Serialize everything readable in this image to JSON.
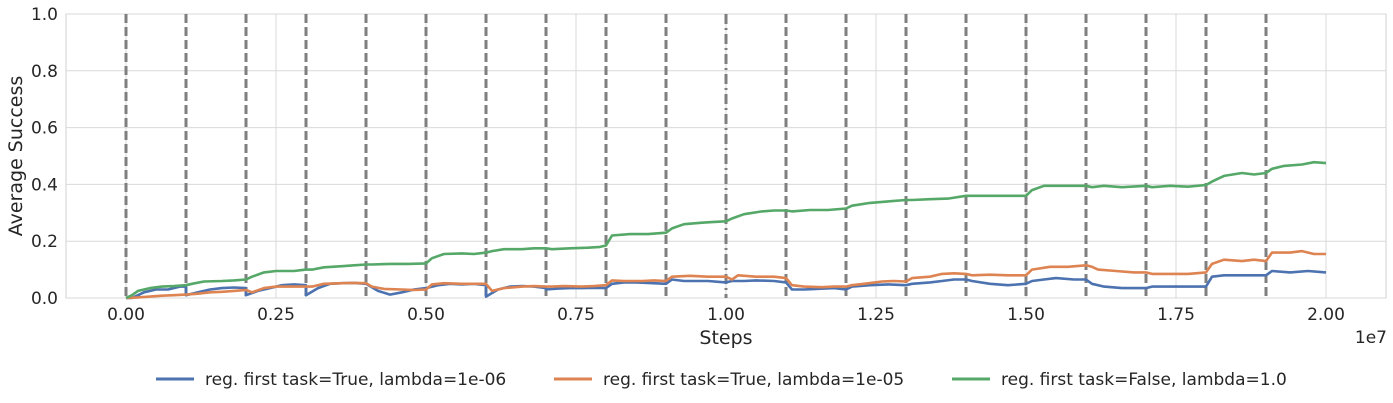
{
  "chart_data": {
    "type": "line",
    "xlabel": "Steps",
    "ylabel": "Average Success",
    "x_offset_label": "1e7",
    "xlim": [
      -0.05,
      2.05
    ],
    "ylim": [
      0.0,
      1.0
    ],
    "x_ticks": [
      0.0,
      0.25,
      0.5,
      0.75,
      1.0,
      1.25,
      1.5,
      1.75,
      2.0
    ],
    "x_tick_labels": [
      "0.00",
      "0.25",
      "0.50",
      "0.75",
      "1.00",
      "1.25",
      "1.50",
      "1.75",
      "2.00"
    ],
    "y_ticks": [
      0.0,
      0.2,
      0.4,
      0.6,
      0.8,
      1.0
    ],
    "y_tick_labels": [
      "0.0",
      "0.2",
      "0.4",
      "0.6",
      "0.8",
      "1.0"
    ],
    "grid": true,
    "legend_position": "bottom-center",
    "task_boundaries": [
      0.0,
      0.1,
      0.2,
      0.3,
      0.4,
      0.5,
      0.6,
      0.7,
      0.8,
      0.9,
      1.0,
      1.1,
      1.2,
      1.3,
      1.4,
      1.5,
      1.6,
      1.7,
      1.8,
      1.9
    ],
    "boundary_color": "#7f7f7f",
    "series": [
      {
        "name": "reg. first task=True, lambda=1e-06",
        "color": "#4c72b0",
        "points": [
          [
            0.0,
            0.0
          ],
          [
            0.01,
            0.0
          ],
          [
            0.02,
            0.01
          ],
          [
            0.03,
            0.02
          ],
          [
            0.05,
            0.03
          ],
          [
            0.07,
            0.03
          ],
          [
            0.09,
            0.04
          ],
          [
            0.1,
            0.04
          ],
          [
            0.1,
            0.01
          ],
          [
            0.12,
            0.02
          ],
          [
            0.14,
            0.03
          ],
          [
            0.16,
            0.035
          ],
          [
            0.18,
            0.037
          ],
          [
            0.2,
            0.035
          ],
          [
            0.2,
            0.01
          ],
          [
            0.22,
            0.025
          ],
          [
            0.24,
            0.035
          ],
          [
            0.26,
            0.045
          ],
          [
            0.28,
            0.048
          ],
          [
            0.3,
            0.045
          ],
          [
            0.3,
            0.01
          ],
          [
            0.32,
            0.035
          ],
          [
            0.34,
            0.05
          ],
          [
            0.36,
            0.052
          ],
          [
            0.38,
            0.053
          ],
          [
            0.4,
            0.05
          ],
          [
            0.42,
            0.025
          ],
          [
            0.44,
            0.012
          ],
          [
            0.46,
            0.02
          ],
          [
            0.48,
            0.03
          ],
          [
            0.5,
            0.035
          ],
          [
            0.5,
            0.035
          ],
          [
            0.52,
            0.045
          ],
          [
            0.54,
            0.05
          ],
          [
            0.56,
            0.048
          ],
          [
            0.58,
            0.05
          ],
          [
            0.6,
            0.045
          ],
          [
            0.6,
            0.005
          ],
          [
            0.62,
            0.03
          ],
          [
            0.64,
            0.04
          ],
          [
            0.66,
            0.042
          ],
          [
            0.68,
            0.04
          ],
          [
            0.7,
            0.035
          ],
          [
            0.7,
            0.03
          ],
          [
            0.72,
            0.033
          ],
          [
            0.74,
            0.035
          ],
          [
            0.76,
            0.035
          ],
          [
            0.78,
            0.036
          ],
          [
            0.8,
            0.035
          ],
          [
            0.81,
            0.05
          ],
          [
            0.83,
            0.055
          ],
          [
            0.85,
            0.055
          ],
          [
            0.87,
            0.053
          ],
          [
            0.9,
            0.05
          ],
          [
            0.91,
            0.065
          ],
          [
            0.93,
            0.06
          ],
          [
            0.95,
            0.06
          ],
          [
            0.97,
            0.06
          ],
          [
            1.0,
            0.055
          ],
          [
            1.01,
            0.06
          ],
          [
            1.03,
            0.06
          ],
          [
            1.05,
            0.062
          ],
          [
            1.08,
            0.06
          ],
          [
            1.1,
            0.055
          ],
          [
            1.11,
            0.03
          ],
          [
            1.13,
            0.03
          ],
          [
            1.15,
            0.032
          ],
          [
            1.18,
            0.035
          ],
          [
            1.2,
            0.03
          ],
          [
            1.21,
            0.04
          ],
          [
            1.24,
            0.045
          ],
          [
            1.27,
            0.048
          ],
          [
            1.3,
            0.045
          ],
          [
            1.31,
            0.05
          ],
          [
            1.34,
            0.055
          ],
          [
            1.36,
            0.06
          ],
          [
            1.38,
            0.065
          ],
          [
            1.4,
            0.065
          ],
          [
            1.41,
            0.06
          ],
          [
            1.44,
            0.05
          ],
          [
            1.47,
            0.045
          ],
          [
            1.5,
            0.05
          ],
          [
            1.51,
            0.06
          ],
          [
            1.53,
            0.065
          ],
          [
            1.55,
            0.07
          ],
          [
            1.58,
            0.065
          ],
          [
            1.6,
            0.065
          ],
          [
            1.61,
            0.05
          ],
          [
            1.63,
            0.04
          ],
          [
            1.66,
            0.035
          ],
          [
            1.7,
            0.035
          ],
          [
            1.71,
            0.04
          ],
          [
            1.74,
            0.04
          ],
          [
            1.77,
            0.04
          ],
          [
            1.8,
            0.04
          ],
          [
            1.81,
            0.075
          ],
          [
            1.83,
            0.08
          ],
          [
            1.86,
            0.08
          ],
          [
            1.9,
            0.08
          ],
          [
            1.91,
            0.095
          ],
          [
            1.94,
            0.09
          ],
          [
            1.97,
            0.095
          ],
          [
            2.0,
            0.09
          ]
        ]
      },
      {
        "name": "reg. first task=True, lambda=1e-05",
        "color": "#dd8452",
        "points": [
          [
            0.0,
            0.0
          ],
          [
            0.02,
            0.002
          ],
          [
            0.04,
            0.005
          ],
          [
            0.06,
            0.008
          ],
          [
            0.08,
            0.01
          ],
          [
            0.1,
            0.012
          ],
          [
            0.12,
            0.015
          ],
          [
            0.14,
            0.02
          ],
          [
            0.16,
            0.022
          ],
          [
            0.18,
            0.025
          ],
          [
            0.2,
            0.028
          ],
          [
            0.21,
            0.02
          ],
          [
            0.23,
            0.035
          ],
          [
            0.25,
            0.04
          ],
          [
            0.28,
            0.04
          ],
          [
            0.3,
            0.04
          ],
          [
            0.31,
            0.04
          ],
          [
            0.33,
            0.05
          ],
          [
            0.36,
            0.052
          ],
          [
            0.38,
            0.053
          ],
          [
            0.4,
            0.052
          ],
          [
            0.41,
            0.04
          ],
          [
            0.43,
            0.032
          ],
          [
            0.46,
            0.03
          ],
          [
            0.48,
            0.028
          ],
          [
            0.5,
            0.03
          ],
          [
            0.51,
            0.048
          ],
          [
            0.53,
            0.052
          ],
          [
            0.56,
            0.05
          ],
          [
            0.58,
            0.05
          ],
          [
            0.6,
            0.05
          ],
          [
            0.61,
            0.025
          ],
          [
            0.63,
            0.035
          ],
          [
            0.66,
            0.04
          ],
          [
            0.68,
            0.042
          ],
          [
            0.7,
            0.04
          ],
          [
            0.71,
            0.04
          ],
          [
            0.73,
            0.042
          ],
          [
            0.76,
            0.04
          ],
          [
            0.78,
            0.042
          ],
          [
            0.8,
            0.045
          ],
          [
            0.81,
            0.062
          ],
          [
            0.83,
            0.06
          ],
          [
            0.86,
            0.06
          ],
          [
            0.88,
            0.062
          ],
          [
            0.9,
            0.06
          ],
          [
            0.91,
            0.075
          ],
          [
            0.94,
            0.078
          ],
          [
            0.97,
            0.075
          ],
          [
            1.0,
            0.075
          ],
          [
            1.01,
            0.065
          ],
          [
            1.02,
            0.08
          ],
          [
            1.05,
            0.075
          ],
          [
            1.08,
            0.075
          ],
          [
            1.1,
            0.07
          ],
          [
            1.11,
            0.045
          ],
          [
            1.13,
            0.04
          ],
          [
            1.16,
            0.038
          ],
          [
            1.18,
            0.04
          ],
          [
            1.2,
            0.04
          ],
          [
            1.21,
            0.045
          ],
          [
            1.23,
            0.05
          ],
          [
            1.26,
            0.058
          ],
          [
            1.28,
            0.06
          ],
          [
            1.3,
            0.058
          ],
          [
            1.31,
            0.07
          ],
          [
            1.34,
            0.075
          ],
          [
            1.36,
            0.085
          ],
          [
            1.38,
            0.087
          ],
          [
            1.4,
            0.085
          ],
          [
            1.41,
            0.08
          ],
          [
            1.44,
            0.082
          ],
          [
            1.47,
            0.08
          ],
          [
            1.5,
            0.08
          ],
          [
            1.51,
            0.1
          ],
          [
            1.54,
            0.11
          ],
          [
            1.57,
            0.11
          ],
          [
            1.6,
            0.115
          ],
          [
            1.61,
            0.11
          ],
          [
            1.62,
            0.1
          ],
          [
            1.65,
            0.095
          ],
          [
            1.68,
            0.09
          ],
          [
            1.7,
            0.09
          ],
          [
            1.71,
            0.085
          ],
          [
            1.74,
            0.085
          ],
          [
            1.77,
            0.085
          ],
          [
            1.8,
            0.09
          ],
          [
            1.81,
            0.12
          ],
          [
            1.83,
            0.135
          ],
          [
            1.86,
            0.13
          ],
          [
            1.88,
            0.135
          ],
          [
            1.9,
            0.13
          ],
          [
            1.91,
            0.16
          ],
          [
            1.94,
            0.16
          ],
          [
            1.96,
            0.165
          ],
          [
            1.98,
            0.155
          ],
          [
            2.0,
            0.155
          ]
        ]
      },
      {
        "name": "reg. first task=False, lambda=1.0",
        "color": "#55a868",
        "points": [
          [
            0.0,
            0.0
          ],
          [
            0.01,
            0.01
          ],
          [
            0.02,
            0.025
          ],
          [
            0.04,
            0.035
          ],
          [
            0.06,
            0.04
          ],
          [
            0.08,
            0.042
          ],
          [
            0.1,
            0.045
          ],
          [
            0.11,
            0.05
          ],
          [
            0.13,
            0.058
          ],
          [
            0.16,
            0.06
          ],
          [
            0.18,
            0.062
          ],
          [
            0.2,
            0.065
          ],
          [
            0.21,
            0.075
          ],
          [
            0.23,
            0.09
          ],
          [
            0.25,
            0.095
          ],
          [
            0.28,
            0.095
          ],
          [
            0.3,
            0.1
          ],
          [
            0.31,
            0.1
          ],
          [
            0.33,
            0.108
          ],
          [
            0.36,
            0.112
          ],
          [
            0.38,
            0.115
          ],
          [
            0.4,
            0.118
          ],
          [
            0.41,
            0.118
          ],
          [
            0.44,
            0.12
          ],
          [
            0.47,
            0.12
          ],
          [
            0.5,
            0.122
          ],
          [
            0.51,
            0.14
          ],
          [
            0.53,
            0.155
          ],
          [
            0.56,
            0.157
          ],
          [
            0.58,
            0.155
          ],
          [
            0.6,
            0.16
          ],
          [
            0.61,
            0.165
          ],
          [
            0.63,
            0.172
          ],
          [
            0.66,
            0.172
          ],
          [
            0.68,
            0.175
          ],
          [
            0.7,
            0.175
          ],
          [
            0.71,
            0.172
          ],
          [
            0.74,
            0.175
          ],
          [
            0.77,
            0.177
          ],
          [
            0.79,
            0.18
          ],
          [
            0.8,
            0.185
          ],
          [
            0.81,
            0.22
          ],
          [
            0.84,
            0.225
          ],
          [
            0.87,
            0.225
          ],
          [
            0.9,
            0.23
          ],
          [
            0.91,
            0.245
          ],
          [
            0.93,
            0.26
          ],
          [
            0.96,
            0.265
          ],
          [
            0.98,
            0.268
          ],
          [
            1.0,
            0.27
          ],
          [
            1.01,
            0.28
          ],
          [
            1.03,
            0.295
          ],
          [
            1.06,
            0.305
          ],
          [
            1.08,
            0.308
          ],
          [
            1.1,
            0.308
          ],
          [
            1.11,
            0.305
          ],
          [
            1.14,
            0.31
          ],
          [
            1.17,
            0.31
          ],
          [
            1.2,
            0.315
          ],
          [
            1.21,
            0.325
          ],
          [
            1.24,
            0.335
          ],
          [
            1.27,
            0.34
          ],
          [
            1.3,
            0.345
          ],
          [
            1.31,
            0.345
          ],
          [
            1.34,
            0.348
          ],
          [
            1.37,
            0.35
          ],
          [
            1.4,
            0.36
          ],
          [
            1.41,
            0.36
          ],
          [
            1.44,
            0.36
          ],
          [
            1.47,
            0.36
          ],
          [
            1.5,
            0.36
          ],
          [
            1.51,
            0.38
          ],
          [
            1.53,
            0.395
          ],
          [
            1.56,
            0.395
          ],
          [
            1.6,
            0.395
          ],
          [
            1.61,
            0.39
          ],
          [
            1.63,
            0.395
          ],
          [
            1.66,
            0.39
          ],
          [
            1.7,
            0.395
          ],
          [
            1.71,
            0.39
          ],
          [
            1.74,
            0.395
          ],
          [
            1.77,
            0.392
          ],
          [
            1.8,
            0.398
          ],
          [
            1.81,
            0.41
          ],
          [
            1.83,
            0.43
          ],
          [
            1.86,
            0.44
          ],
          [
            1.88,
            0.435
          ],
          [
            1.9,
            0.44
          ],
          [
            1.91,
            0.455
          ],
          [
            1.93,
            0.465
          ],
          [
            1.96,
            0.47
          ],
          [
            1.98,
            0.478
          ],
          [
            2.0,
            0.475
          ]
        ]
      }
    ]
  }
}
